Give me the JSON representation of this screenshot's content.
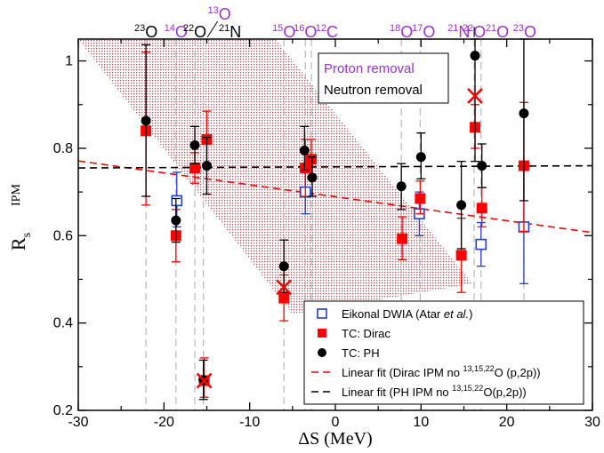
{
  "chart_data": {
    "type": "scatter",
    "xlabel": "ΔS (MeV)",
    "ylabel_main": "R",
    "ylabel_sub": "s",
    "ylabel_sup": "IPM",
    "xlim": [
      -30,
      30
    ],
    "ylim": [
      0.2,
      1.05
    ],
    "x_ticks": [
      -30,
      -20,
      -10,
      0,
      10,
      20,
      30
    ],
    "y_ticks": [
      0.2,
      0.4,
      0.6,
      0.8,
      1.0
    ],
    "y_tick_labels": [
      "0.2",
      "0.4",
      "0.6",
      "0.8",
      "1"
    ],
    "grid": false,
    "top_nuclei": [
      {
        "sup": "23",
        "base": "O",
        "x": -22.1,
        "color": "#000000"
      },
      {
        "sup": "14",
        "base": "O",
        "x": -18.6,
        "color": "#9932cc"
      },
      {
        "sup": "22",
        "base": "O",
        "x": -16.4,
        "color": "#000000"
      },
      {
        "sup": "13",
        "base": "O",
        "x": -15.4,
        "color": "#9932cc"
      },
      {
        "sup": "21",
        "base": "N",
        "x": -12.7,
        "color": "#000000"
      },
      {
        "sup": "15",
        "base": "O",
        "x": -6.0,
        "color": "#9932cc"
      },
      {
        "sup": "16",
        "base": "O",
        "x": -3.5,
        "color": "#9932cc"
      },
      {
        "sup": "12",
        "base": "C",
        "x": -1.0,
        "color": "#9932cc"
      },
      {
        "sup": "18",
        "base": "O",
        "x": 7.7,
        "color": "#9932cc"
      },
      {
        "sup": "17",
        "base": "O",
        "x": 10.3,
        "color": "#9932cc"
      },
      {
        "sup": "21",
        "base": "N",
        "x": 14.4,
        "color": "#9932cc"
      },
      {
        "sup": "22",
        "base": "O",
        "x": 16.2,
        "color": "#9932cc"
      },
      {
        "sup": "21",
        "base": "O",
        "x": 18.9,
        "color": "#9932cc"
      },
      {
        "sup": "23",
        "base": "O",
        "x": 22.1,
        "color": "#9932cc"
      }
    ],
    "removal_legend": [
      {
        "label": "Proton removal",
        "color": "#9932cc"
      },
      {
        "label": "Neutron removal",
        "color": "#000000"
      }
    ],
    "legend_position": "lower-right",
    "series": [
      {
        "name": "Eikonal DWIA (Atar et al.)",
        "name_main": "Eikonal DWIA (Atar ",
        "name_italic": "et al.",
        "name_end": ")",
        "marker": "open-square",
        "color": "#1f3fcf",
        "points": [
          {
            "x": -18.5,
            "y": 0.68,
            "lo": 0.62,
            "hi": 0.745
          },
          {
            "x": -3.5,
            "y": 0.7,
            "lo": 0.65,
            "hi": 0.755
          },
          {
            "x": 9.8,
            "y": 0.65,
            "lo": 0.6,
            "hi": 0.7
          },
          {
            "x": 17.0,
            "y": 0.58,
            "lo": 0.53,
            "hi": 0.63
          },
          {
            "x": 22.0,
            "y": 0.62,
            "lo": 0.49,
            "hi": 0.75
          }
        ]
      },
      {
        "name": "TC: Dirac",
        "marker": "filled-square",
        "color": "#ff0000",
        "points": [
          {
            "x": -22.1,
            "y": 0.84,
            "lo": 0.67,
            "hi": 1.02
          },
          {
            "x": -18.6,
            "y": 0.6,
            "lo": 0.54,
            "hi": 0.66
          },
          {
            "x": -16.4,
            "y": 0.755,
            "lo": 0.72,
            "hi": 0.79
          },
          {
            "x": -15.3,
            "y": 0.268,
            "lo": 0.23,
            "hi": 0.32
          },
          {
            "x": -15.0,
            "y": 0.82,
            "lo": 0.765,
            "hi": 0.885
          },
          {
            "x": -6.0,
            "y": 0.457,
            "lo": 0.405,
            "hi": 0.51
          },
          {
            "x": -3.5,
            "y": 0.755,
            "lo": 0.69,
            "hi": 0.82
          },
          {
            "x": -2.8,
            "y": 0.775,
            "lo": 0.73,
            "hi": 0.82
          },
          {
            "x": 7.8,
            "y": 0.593,
            "lo": 0.545,
            "hi": 0.643
          },
          {
            "x": 9.9,
            "y": 0.685,
            "lo": 0.65,
            "hi": 0.725
          },
          {
            "x": 14.7,
            "y": 0.555,
            "lo": 0.47,
            "hi": 0.64
          },
          {
            "x": 16.3,
            "y": 0.848,
            "lo": 0.8,
            "hi": 0.9
          },
          {
            "x": 17.1,
            "y": 0.663,
            "lo": 0.62,
            "hi": 0.71
          },
          {
            "x": 22.0,
            "y": 0.76,
            "lo": 0.61,
            "hi": 0.905
          }
        ]
      },
      {
        "name": "TC: PH",
        "marker": "filled-circle",
        "color": "#000000",
        "points": [
          {
            "x": -22.1,
            "y": 0.863,
            "lo": 0.69,
            "hi": 1.037
          },
          {
            "x": -18.6,
            "y": 0.635,
            "lo": 0.585,
            "hi": 0.685
          },
          {
            "x": -16.4,
            "y": 0.807,
            "lo": 0.765,
            "hi": 0.85
          },
          {
            "x": -15.4,
            "y": 0.27,
            "lo": 0.225,
            "hi": 0.315
          },
          {
            "x": -15.0,
            "y": 0.76,
            "lo": 0.695,
            "hi": 0.825
          },
          {
            "x": -6.0,
            "y": 0.53,
            "lo": 0.47,
            "hi": 0.59
          },
          {
            "x": -3.6,
            "y": 0.795,
            "lo": 0.75,
            "hi": 0.85
          },
          {
            "x": -2.7,
            "y": 0.733,
            "lo": 0.69,
            "hi": 0.78
          },
          {
            "x": 7.7,
            "y": 0.713,
            "lo": 0.66,
            "hi": 0.765
          },
          {
            "x": 10.0,
            "y": 0.78,
            "lo": 0.73,
            "hi": 0.835
          },
          {
            "x": 14.7,
            "y": 0.67,
            "lo": 0.57,
            "hi": 0.77
          },
          {
            "x": 16.3,
            "y": 1.012,
            "lo": 0.77,
            "hi": 1.05
          },
          {
            "x": 17.1,
            "y": 0.76,
            "lo": 0.71,
            "hi": 0.81
          },
          {
            "x": 22.0,
            "y": 0.88,
            "lo": 0.68,
            "hi": 1.05
          }
        ]
      },
      {
        "name": "Linear fit (Dirac IPM no 13,15,22O (p,2p))",
        "name_main": "Linear fit (Dirac IPM no ",
        "name_sup": "13,15,22",
        "name_end": "O (p,2p))",
        "marker": "line",
        "dash": "8 5",
        "color": "#ff0000",
        "line": {
          "x0": -30,
          "y0": 0.771,
          "x1": 30,
          "y1": 0.607
        }
      },
      {
        "name": "Linear fit (PH IPM no 13,15,22O(p,2p))",
        "name_main": "Linear fit (PH IPM no ",
        "name_sup": "13,15,22",
        "name_end": "O(p,2p))",
        "marker": "line",
        "dash": "8 5",
        "color": "#000000",
        "line": {
          "x0": -30,
          "y0": 0.755,
          "x1": 30,
          "y1": 0.76
        }
      }
    ],
    "cross_markers": [
      {
        "x": -15.3,
        "y": 0.268,
        "color": "#ff0000"
      },
      {
        "x": -6.0,
        "y": 0.482,
        "color": "#ff0000"
      },
      {
        "x": 16.3,
        "y": 0.92,
        "color": "#ff0000"
      }
    ],
    "vertical_guides": [
      -22.1,
      -18.6,
      -16.4,
      -15.4,
      -6.0,
      -3.5,
      -2.8,
      7.7,
      9.9,
      16.2,
      17.0,
      22.0
    ],
    "band": {
      "color": "#a0303a",
      "polygon": [
        [
          -30,
          1.05
        ],
        [
          -7.0,
          1.05
        ],
        [
          16,
          0.49
        ],
        [
          -5,
          0.42
        ],
        [
          -30,
          1.05
        ]
      ]
    },
    "colors": {
      "proton": "#9932cc",
      "dirac": "#ff0000",
      "eikonal": "#1f3fcf",
      "ph": "#000000"
    }
  }
}
